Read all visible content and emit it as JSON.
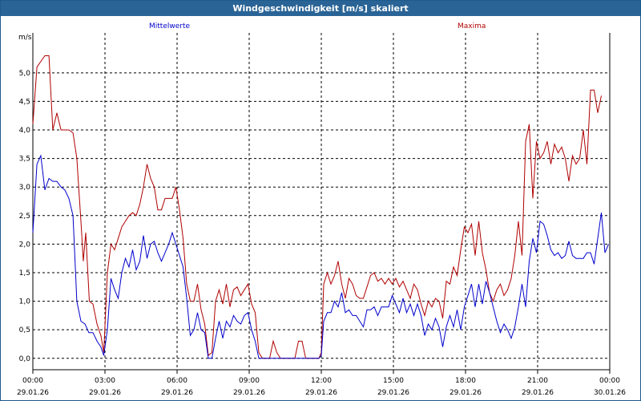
{
  "window": {
    "title": "Windgeschwindigkeit [m/s] skaliert"
  },
  "colors": {
    "mean": "#0000cc",
    "max": "#b00000",
    "titlebar": "#2a6496",
    "grid": "#000000"
  },
  "chart_data": {
    "type": "line",
    "title": "Windgeschwindigkeit [m/s] skaliert",
    "ylabel": "m/s",
    "xlabel": "",
    "ylim": [
      -0.2,
      5.7
    ],
    "xlim": [
      0,
      24
    ],
    "grid": true,
    "y_ticks": [
      0.0,
      0.5,
      1.0,
      1.5,
      2.0,
      2.5,
      3.0,
      3.5,
      4.0,
      4.5,
      5.0
    ],
    "y_tick_labels": [
      "0,0",
      "0,5",
      "1,0",
      "1,5",
      "2,0",
      "2,5",
      "3,0",
      "3,5",
      "4,0",
      "4,5",
      "5,0"
    ],
    "x_ticks": [
      {
        "hour": 0,
        "time": "00:00",
        "date": "29.01.26"
      },
      {
        "hour": 3,
        "time": "03:00",
        "date": "29.01.26"
      },
      {
        "hour": 6,
        "time": "06:00",
        "date": "29.01.26"
      },
      {
        "hour": 9,
        "time": "09:00",
        "date": "29.01.26"
      },
      {
        "hour": 12,
        "time": "12:00",
        "date": "29.01.26"
      },
      {
        "hour": 15,
        "time": "15:00",
        "date": "29.01.26"
      },
      {
        "hour": 18,
        "time": "18:00",
        "date": "29.01.26"
      },
      {
        "hour": 21,
        "time": "21:00",
        "date": "29.01.26"
      },
      {
        "hour": 24,
        "time": "00:00",
        "date": "30.01.26"
      }
    ],
    "series": [
      {
        "name": "Mittelwerte",
        "color": "#0000cc",
        "points": [
          [
            0,
            2.2
          ],
          [
            0.17,
            3.4
          ],
          [
            0.33,
            3.55
          ],
          [
            0.5,
            2.95
          ],
          [
            0.67,
            3.15
          ],
          [
            0.83,
            3.1
          ],
          [
            1,
            3.1
          ],
          [
            1.17,
            3.0
          ],
          [
            1.33,
            2.95
          ],
          [
            1.5,
            2.8
          ],
          [
            1.67,
            2.5
          ],
          [
            1.83,
            1.0
          ],
          [
            2,
            0.65
          ],
          [
            2.17,
            0.6
          ],
          [
            2.33,
            0.45
          ],
          [
            2.5,
            0.45
          ],
          [
            2.67,
            0.3
          ],
          [
            2.83,
            0.2
          ],
          [
            2.95,
            0.05
          ],
          [
            3.1,
            0.5
          ],
          [
            3.25,
            1.4
          ],
          [
            3.4,
            1.2
          ],
          [
            3.55,
            1.05
          ],
          [
            3.7,
            1.5
          ],
          [
            3.85,
            1.75
          ],
          [
            4.0,
            1.6
          ],
          [
            4.15,
            1.9
          ],
          [
            4.3,
            1.55
          ],
          [
            4.45,
            1.7
          ],
          [
            4.6,
            2.15
          ],
          [
            4.75,
            1.75
          ],
          [
            4.9,
            2.0
          ],
          [
            5.05,
            2.05
          ],
          [
            5.2,
            1.85
          ],
          [
            5.35,
            1.7
          ],
          [
            5.5,
            1.85
          ],
          [
            5.65,
            2.0
          ],
          [
            5.8,
            2.2
          ],
          [
            5.95,
            2.0
          ],
          [
            6.1,
            1.8
          ],
          [
            6.25,
            1.6
          ],
          [
            6.4,
            1.05
          ],
          [
            6.55,
            0.4
          ],
          [
            6.7,
            0.5
          ],
          [
            6.85,
            0.8
          ],
          [
            7.0,
            0.5
          ],
          [
            7.15,
            0.45
          ],
          [
            7.3,
            0.0
          ],
          [
            7.45,
            0.0
          ],
          [
            7.6,
            0.35
          ],
          [
            7.75,
            0.65
          ],
          [
            7.9,
            0.35
          ],
          [
            8.05,
            0.65
          ],
          [
            8.2,
            0.55
          ],
          [
            8.35,
            0.75
          ],
          [
            8.5,
            0.65
          ],
          [
            8.65,
            0.6
          ],
          [
            8.8,
            0.75
          ],
          [
            8.95,
            0.8
          ],
          [
            9.1,
            0.5
          ],
          [
            9.25,
            0.3
          ],
          [
            9.4,
            0.0
          ],
          [
            11.9,
            0.0
          ],
          [
            12.0,
            0.05
          ],
          [
            12.1,
            0.65
          ],
          [
            12.25,
            0.8
          ],
          [
            12.4,
            0.8
          ],
          [
            12.55,
            1.0
          ],
          [
            12.7,
            0.9
          ],
          [
            12.85,
            1.15
          ],
          [
            13.0,
            0.8
          ],
          [
            13.15,
            0.85
          ],
          [
            13.3,
            0.75
          ],
          [
            13.45,
            0.75
          ],
          [
            13.6,
            0.65
          ],
          [
            13.75,
            0.55
          ],
          [
            13.9,
            0.85
          ],
          [
            14.05,
            0.85
          ],
          [
            14.2,
            0.9
          ],
          [
            14.35,
            0.75
          ],
          [
            14.5,
            0.9
          ],
          [
            14.65,
            0.9
          ],
          [
            14.8,
            0.9
          ],
          [
            14.95,
            1.1
          ],
          [
            15.1,
            0.95
          ],
          [
            15.25,
            0.8
          ],
          [
            15.4,
            1.05
          ],
          [
            15.55,
            0.8
          ],
          [
            15.7,
            0.95
          ],
          [
            15.85,
            0.75
          ],
          [
            16.0,
            0.95
          ],
          [
            16.15,
            0.75
          ],
          [
            16.3,
            0.4
          ],
          [
            16.45,
            0.6
          ],
          [
            16.6,
            0.5
          ],
          [
            16.75,
            0.7
          ],
          [
            16.9,
            0.55
          ],
          [
            17.05,
            0.2
          ],
          [
            17.2,
            0.55
          ],
          [
            17.35,
            0.75
          ],
          [
            17.5,
            0.55
          ],
          [
            17.65,
            0.85
          ],
          [
            17.8,
            0.5
          ],
          [
            17.95,
            0.9
          ],
          [
            18.1,
            1.1
          ],
          [
            18.25,
            1.3
          ],
          [
            18.4,
            0.9
          ],
          [
            18.55,
            1.3
          ],
          [
            18.7,
            0.95
          ],
          [
            18.85,
            1.35
          ],
          [
            19.0,
            1.15
          ],
          [
            19.15,
            0.9
          ],
          [
            19.3,
            0.65
          ],
          [
            19.45,
            0.45
          ],
          [
            19.6,
            0.6
          ],
          [
            19.75,
            0.5
          ],
          [
            19.9,
            0.35
          ],
          [
            20.05,
            0.55
          ],
          [
            20.2,
            0.9
          ],
          [
            20.35,
            1.3
          ],
          [
            20.5,
            0.9
          ],
          [
            20.65,
            1.7
          ],
          [
            20.8,
            2.1
          ],
          [
            20.95,
            1.85
          ],
          [
            21.1,
            2.4
          ],
          [
            21.25,
            2.35
          ],
          [
            21.4,
            2.15
          ],
          [
            21.55,
            1.9
          ],
          [
            21.7,
            1.8
          ],
          [
            21.85,
            1.85
          ],
          [
            22.0,
            1.75
          ],
          [
            22.15,
            1.8
          ],
          [
            22.3,
            2.05
          ],
          [
            22.45,
            1.8
          ],
          [
            22.6,
            1.75
          ],
          [
            22.75,
            1.75
          ],
          [
            22.9,
            1.75
          ],
          [
            23.05,
            1.85
          ],
          [
            23.2,
            1.85
          ],
          [
            23.35,
            1.65
          ],
          [
            23.5,
            2.1
          ],
          [
            23.65,
            2.55
          ],
          [
            23.8,
            1.85
          ],
          [
            23.95,
            2.0
          ]
        ]
      },
      {
        "name": "Maxima",
        "color": "#b00000",
        "points": [
          [
            0,
            4.1
          ],
          [
            0.17,
            5.1
          ],
          [
            0.33,
            5.2
          ],
          [
            0.5,
            5.3
          ],
          [
            0.67,
            5.3
          ],
          [
            0.83,
            4.0
          ],
          [
            1,
            4.3
          ],
          [
            1.17,
            4.0
          ],
          [
            1.33,
            4.0
          ],
          [
            1.5,
            4.0
          ],
          [
            1.67,
            3.95
          ],
          [
            1.83,
            3.5
          ],
          [
            2,
            2.4
          ],
          [
            2.1,
            1.7
          ],
          [
            2.2,
            2.2
          ],
          [
            2.35,
            1.0
          ],
          [
            2.5,
            0.95
          ],
          [
            2.67,
            0.6
          ],
          [
            2.83,
            0.4
          ],
          [
            2.95,
            0.1
          ],
          [
            3.1,
            1.5
          ],
          [
            3.25,
            2.0
          ],
          [
            3.4,
            1.9
          ],
          [
            3.55,
            2.1
          ],
          [
            3.7,
            2.3
          ],
          [
            3.85,
            2.4
          ],
          [
            4.0,
            2.5
          ],
          [
            4.15,
            2.55
          ],
          [
            4.3,
            2.5
          ],
          [
            4.45,
            2.7
          ],
          [
            4.6,
            3.0
          ],
          [
            4.75,
            3.4
          ],
          [
            4.9,
            3.15
          ],
          [
            5.05,
            3.0
          ],
          [
            5.2,
            2.6
          ],
          [
            5.35,
            2.6
          ],
          [
            5.5,
            2.8
          ],
          [
            5.65,
            2.8
          ],
          [
            5.8,
            2.8
          ],
          [
            5.95,
            3.0
          ],
          [
            6.1,
            2.6
          ],
          [
            6.25,
            2.1
          ],
          [
            6.4,
            1.3
          ],
          [
            6.55,
            1.0
          ],
          [
            6.7,
            1.0
          ],
          [
            6.85,
            1.3
          ],
          [
            7.0,
            0.85
          ],
          [
            7.15,
            0.6
          ],
          [
            7.3,
            0.05
          ],
          [
            7.45,
            0.1
          ],
          [
            7.6,
            1.0
          ],
          [
            7.75,
            1.2
          ],
          [
            7.9,
            0.95
          ],
          [
            8.05,
            1.3
          ],
          [
            8.2,
            0.9
          ],
          [
            8.35,
            1.2
          ],
          [
            8.5,
            1.25
          ],
          [
            8.65,
            1.1
          ],
          [
            8.8,
            1.2
          ],
          [
            8.95,
            1.3
          ],
          [
            9.1,
            0.95
          ],
          [
            9.25,
            0.8
          ],
          [
            9.4,
            0.1
          ],
          [
            9.55,
            0.0
          ],
          [
            9.7,
            0.0
          ],
          [
            9.85,
            0.0
          ],
          [
            10.0,
            0.3
          ],
          [
            10.15,
            0.1
          ],
          [
            10.3,
            0.0
          ],
          [
            10.45,
            0.0
          ],
          [
            10.6,
            0.0
          ],
          [
            10.75,
            0.0
          ],
          [
            10.9,
            0.0
          ],
          [
            11.05,
            0.3
          ],
          [
            11.2,
            0.3
          ],
          [
            11.35,
            0.0
          ],
          [
            11.5,
            0.0
          ],
          [
            11.65,
            0.0
          ],
          [
            11.8,
            0.0
          ],
          [
            11.9,
            0.0
          ],
          [
            12.0,
            0.1
          ],
          [
            12.1,
            1.3
          ],
          [
            12.25,
            1.5
          ],
          [
            12.4,
            1.3
          ],
          [
            12.55,
            1.45
          ],
          [
            12.7,
            1.7
          ],
          [
            12.85,
            1.3
          ],
          [
            13.0,
            1.05
          ],
          [
            13.15,
            1.4
          ],
          [
            13.3,
            1.3
          ],
          [
            13.45,
            1.1
          ],
          [
            13.6,
            1.05
          ],
          [
            13.75,
            1.05
          ],
          [
            13.9,
            1.25
          ],
          [
            14.05,
            1.45
          ],
          [
            14.2,
            1.5
          ],
          [
            14.35,
            1.35
          ],
          [
            14.5,
            1.4
          ],
          [
            14.65,
            1.3
          ],
          [
            14.8,
            1.4
          ],
          [
            14.95,
            1.3
          ],
          [
            15.1,
            1.4
          ],
          [
            15.25,
            1.25
          ],
          [
            15.4,
            1.35
          ],
          [
            15.55,
            1.2
          ],
          [
            15.7,
            1.05
          ],
          [
            15.85,
            1.3
          ],
          [
            16.0,
            1.2
          ],
          [
            16.15,
            0.95
          ],
          [
            16.3,
            0.75
          ],
          [
            16.45,
            1.0
          ],
          [
            16.6,
            0.9
          ],
          [
            16.75,
            1.05
          ],
          [
            16.9,
            1.0
          ],
          [
            17.05,
            0.7
          ],
          [
            17.2,
            1.35
          ],
          [
            17.35,
            1.3
          ],
          [
            17.5,
            1.6
          ],
          [
            17.65,
            1.45
          ],
          [
            17.8,
            1.9
          ],
          [
            17.95,
            2.3
          ],
          [
            18.1,
            2.2
          ],
          [
            18.25,
            2.35
          ],
          [
            18.4,
            1.8
          ],
          [
            18.55,
            2.4
          ],
          [
            18.7,
            1.85
          ],
          [
            18.85,
            1.55
          ],
          [
            19.0,
            1.15
          ],
          [
            19.15,
            1.0
          ],
          [
            19.3,
            1.2
          ],
          [
            19.45,
            1.3
          ],
          [
            19.6,
            1.1
          ],
          [
            19.75,
            1.2
          ],
          [
            19.9,
            1.4
          ],
          [
            20.05,
            1.8
          ],
          [
            20.2,
            2.4
          ],
          [
            20.35,
            1.8
          ],
          [
            20.5,
            3.8
          ],
          [
            20.65,
            4.1
          ],
          [
            20.8,
            2.8
          ],
          [
            20.95,
            3.8
          ],
          [
            21.1,
            3.5
          ],
          [
            21.25,
            3.6
          ],
          [
            21.4,
            3.8
          ],
          [
            21.55,
            3.4
          ],
          [
            21.7,
            3.75
          ],
          [
            21.85,
            3.6
          ],
          [
            22.0,
            3.7
          ],
          [
            22.15,
            3.5
          ],
          [
            22.3,
            3.1
          ],
          [
            22.45,
            3.55
          ],
          [
            22.6,
            3.4
          ],
          [
            22.75,
            3.5
          ],
          [
            22.9,
            4.0
          ],
          [
            23.05,
            3.4
          ],
          [
            23.2,
            4.7
          ],
          [
            23.35,
            4.7
          ],
          [
            23.5,
            4.3
          ],
          [
            23.65,
            4.6
          ]
        ]
      }
    ]
  }
}
